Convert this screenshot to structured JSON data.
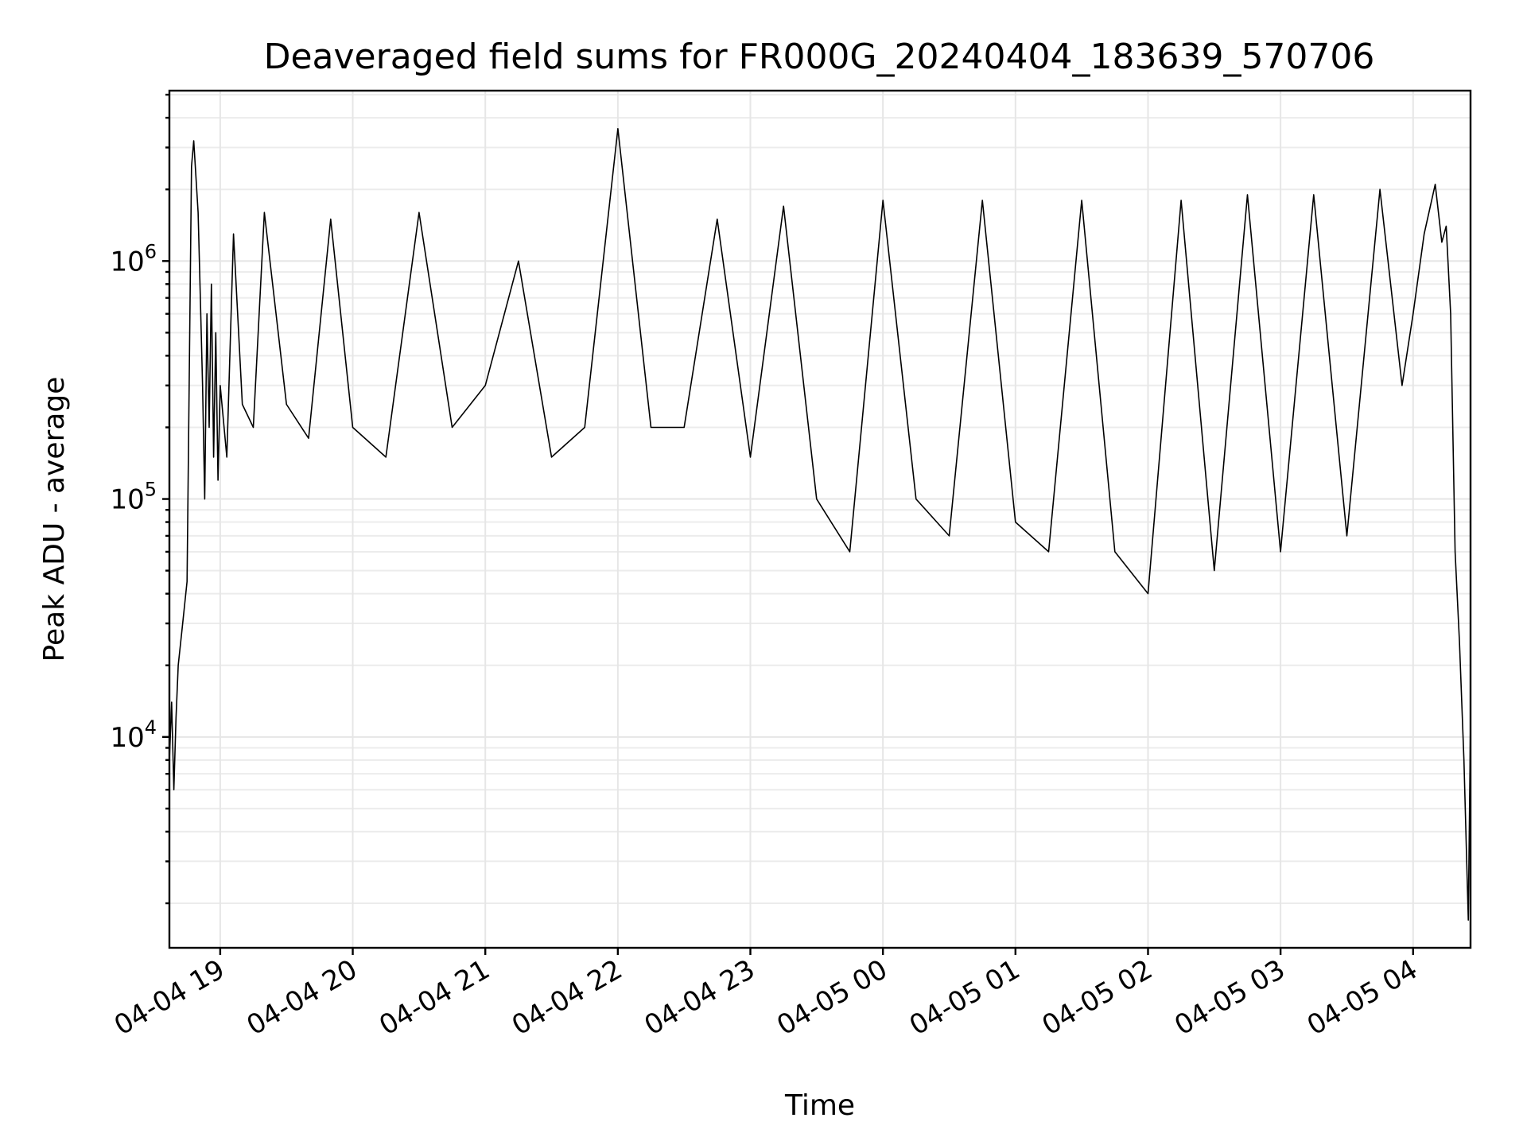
{
  "chart_data": {
    "type": "line",
    "title": "Deaveraged field sums for FR000G_20240404_183639_570706",
    "xlabel": "Time",
    "ylabel": "Peak ADU - average",
    "yscale": "log",
    "grid": true,
    "x_range": [
      "04-04 18:37",
      "04-05 04:26"
    ],
    "ylim": [
      1300,
      5200000
    ],
    "x_ticks": [
      "04-04 19",
      "04-04 20",
      "04-04 21",
      "04-04 22",
      "04-04 23",
      "04-05 00",
      "04-05 01",
      "04-05 02",
      "04-05 03",
      "04-05 04"
    ],
    "y_ticks": [
      {
        "base": "10",
        "exp": "4",
        "value": 10000
      },
      {
        "base": "10",
        "exp": "5",
        "value": 100000
      },
      {
        "base": "10",
        "exp": "6",
        "value": 1000000
      }
    ],
    "series": [
      {
        "color": "#000000",
        "x": [
          "04-04 18:37",
          "04-04 18:38",
          "04-04 18:39",
          "04-04 18:40",
          "04-04 18:41",
          "04-04 18:43",
          "04-04 18:45",
          "04-04 18:47",
          "04-04 18:48",
          "04-04 18:50",
          "04-04 18:51",
          "04-04 18:52",
          "04-04 18:53",
          "04-04 18:54",
          "04-04 18:55",
          "04-04 18:56",
          "04-04 18:57",
          "04-04 18:58",
          "04-04 18:59",
          "04-04 19:00",
          "04-04 19:03",
          "04-04 19:06",
          "04-04 19:10",
          "04-04 19:15",
          "04-04 19:20",
          "04-04 19:30",
          "04-04 19:40",
          "04-04 19:50",
          "04-04 20:00",
          "04-04 20:15",
          "04-04 20:30",
          "04-04 20:45",
          "04-04 21:00",
          "04-04 21:15",
          "04-04 21:30",
          "04-04 21:45",
          "04-04 22:00",
          "04-04 22:15",
          "04-04 22:30",
          "04-04 22:45",
          "04-04 23:00",
          "04-04 23:15",
          "04-04 23:30",
          "04-04 23:45",
          "04-05 00:00",
          "04-05 00:15",
          "04-05 00:30",
          "04-05 00:45",
          "04-05 01:00",
          "04-05 01:15",
          "04-05 01:30",
          "04-05 01:45",
          "04-05 02:00",
          "04-05 02:15",
          "04-05 02:30",
          "04-05 02:45",
          "04-05 03:00",
          "04-05 03:15",
          "04-05 03:30",
          "04-05 03:45",
          "04-05 03:55",
          "04-05 04:00",
          "04-05 04:05",
          "04-05 04:10",
          "04-05 04:13",
          "04-05 04:15",
          "04-05 04:17",
          "04-05 04:19",
          "04-05 04:21",
          "04-05 04:23",
          "04-05 04:25",
          "04-05 04:26"
        ],
        "y": [
          8000,
          14000,
          6000,
          12000,
          20000,
          30000,
          45000,
          2500000,
          3200000,
          1600000,
          700000,
          300000,
          100000,
          600000,
          200000,
          800000,
          150000,
          500000,
          120000,
          300000,
          150000,
          1300000,
          250000,
          200000,
          1600000,
          250000,
          180000,
          1500000,
          200000,
          150000,
          1600000,
          200000,
          300000,
          1000000,
          150000,
          200000,
          3600000,
          200000,
          200000,
          1500000,
          150000,
          1700000,
          100000,
          60000,
          1800000,
          100000,
          70000,
          1800000,
          80000,
          60000,
          1800000,
          60000,
          40000,
          1800000,
          50000,
          1900000,
          60000,
          1900000,
          70000,
          2000000,
          300000,
          600000,
          1300000,
          2100000,
          1200000,
          1400000,
          600000,
          60000,
          25000,
          8000,
          1700,
          12000
        ]
      }
    ]
  }
}
